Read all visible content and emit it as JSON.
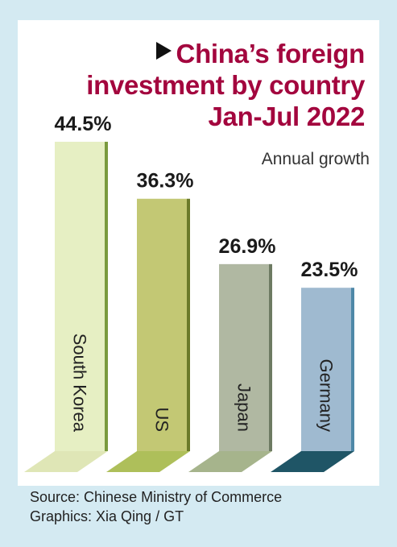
{
  "title_lines": [
    "China’s foreign",
    "investment by country",
    "Jan-Jul 2022"
  ],
  "subtitle": "Annual growth",
  "footer": {
    "source": "Source: Chinese Ministry of Commerce",
    "credit": "Graphics: Xia Qing / GT"
  },
  "chart_data": {
    "type": "bar",
    "title": "China’s foreign investment by country Jan-Jul 2022",
    "subtitle": "Annual growth",
    "categories": [
      "South Korea",
      "US",
      "Japan",
      "Germany"
    ],
    "values": [
      44.5,
      36.3,
      26.9,
      23.5
    ],
    "value_labels": [
      "44.5%",
      "36.3%",
      "26.9%",
      "23.5%"
    ],
    "unit": "%",
    "colors": [
      {
        "face": "#e6efc3",
        "edge": "#7a9a3e",
        "shadow": "#dfe6b6"
      },
      {
        "face": "#c3c874",
        "edge": "#6b7a2a",
        "shadow": "#aebf5a"
      },
      {
        "face": "#b0b8a2",
        "edge": "#6d7a62",
        "shadow": "#a6b48c"
      },
      {
        "face": "#9fbad0",
        "edge": "#4e88a8",
        "shadow": "#1f5566"
      }
    ]
  },
  "colors": {
    "background": "#d4eaf2",
    "panel": "#ffffff",
    "title": "#a3063e"
  }
}
